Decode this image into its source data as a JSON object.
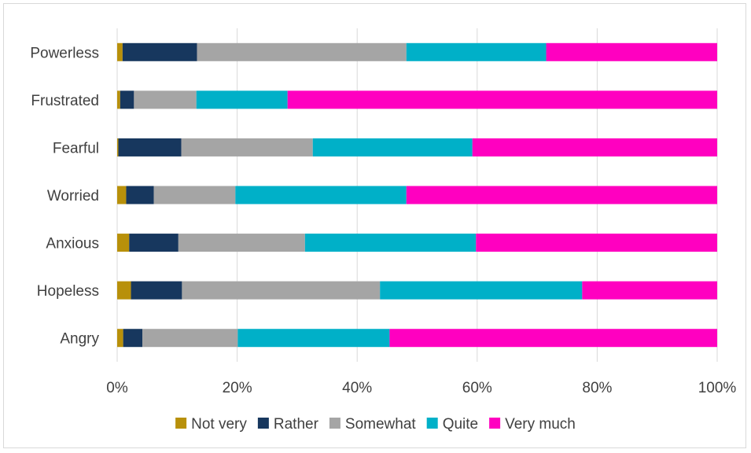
{
  "chart_data": {
    "type": "bar",
    "orientation": "horizontal",
    "stacked": "percent",
    "categories": [
      "Powerless",
      "Frustrated",
      "Fearful",
      "Worried",
      "Anxious",
      "Hopeless",
      "Angry"
    ],
    "series": [
      {
        "name": "Not very",
        "color": "#b8900a",
        "values": [
          0.9,
          0.5,
          0.2,
          1.5,
          2.0,
          2.3,
          1.0
        ]
      },
      {
        "name": "Rather",
        "color": "#17375e",
        "values": [
          12.4,
          2.3,
          10.5,
          4.6,
          8.2,
          8.5,
          3.2
        ]
      },
      {
        "name": "Somewhat",
        "color": "#a5a5a5",
        "values": [
          34.9,
          10.4,
          21.9,
          13.6,
          21.1,
          33.0,
          15.9
        ]
      },
      {
        "name": "Quite",
        "color": "#00b0c8",
        "values": [
          23.3,
          15.2,
          26.6,
          28.5,
          28.5,
          33.7,
          25.3
        ]
      },
      {
        "name": "Very much",
        "color": "#ff00c0",
        "values": [
          28.5,
          71.6,
          40.8,
          51.8,
          40.2,
          22.5,
          54.6
        ]
      }
    ],
    "x_ticks": [
      "0%",
      "20%",
      "40%",
      "60%",
      "80%",
      "100%"
    ],
    "xlim": [
      0,
      100
    ],
    "grid": true,
    "legend_position": "bottom",
    "title": "",
    "xlabel": "",
    "ylabel": ""
  }
}
